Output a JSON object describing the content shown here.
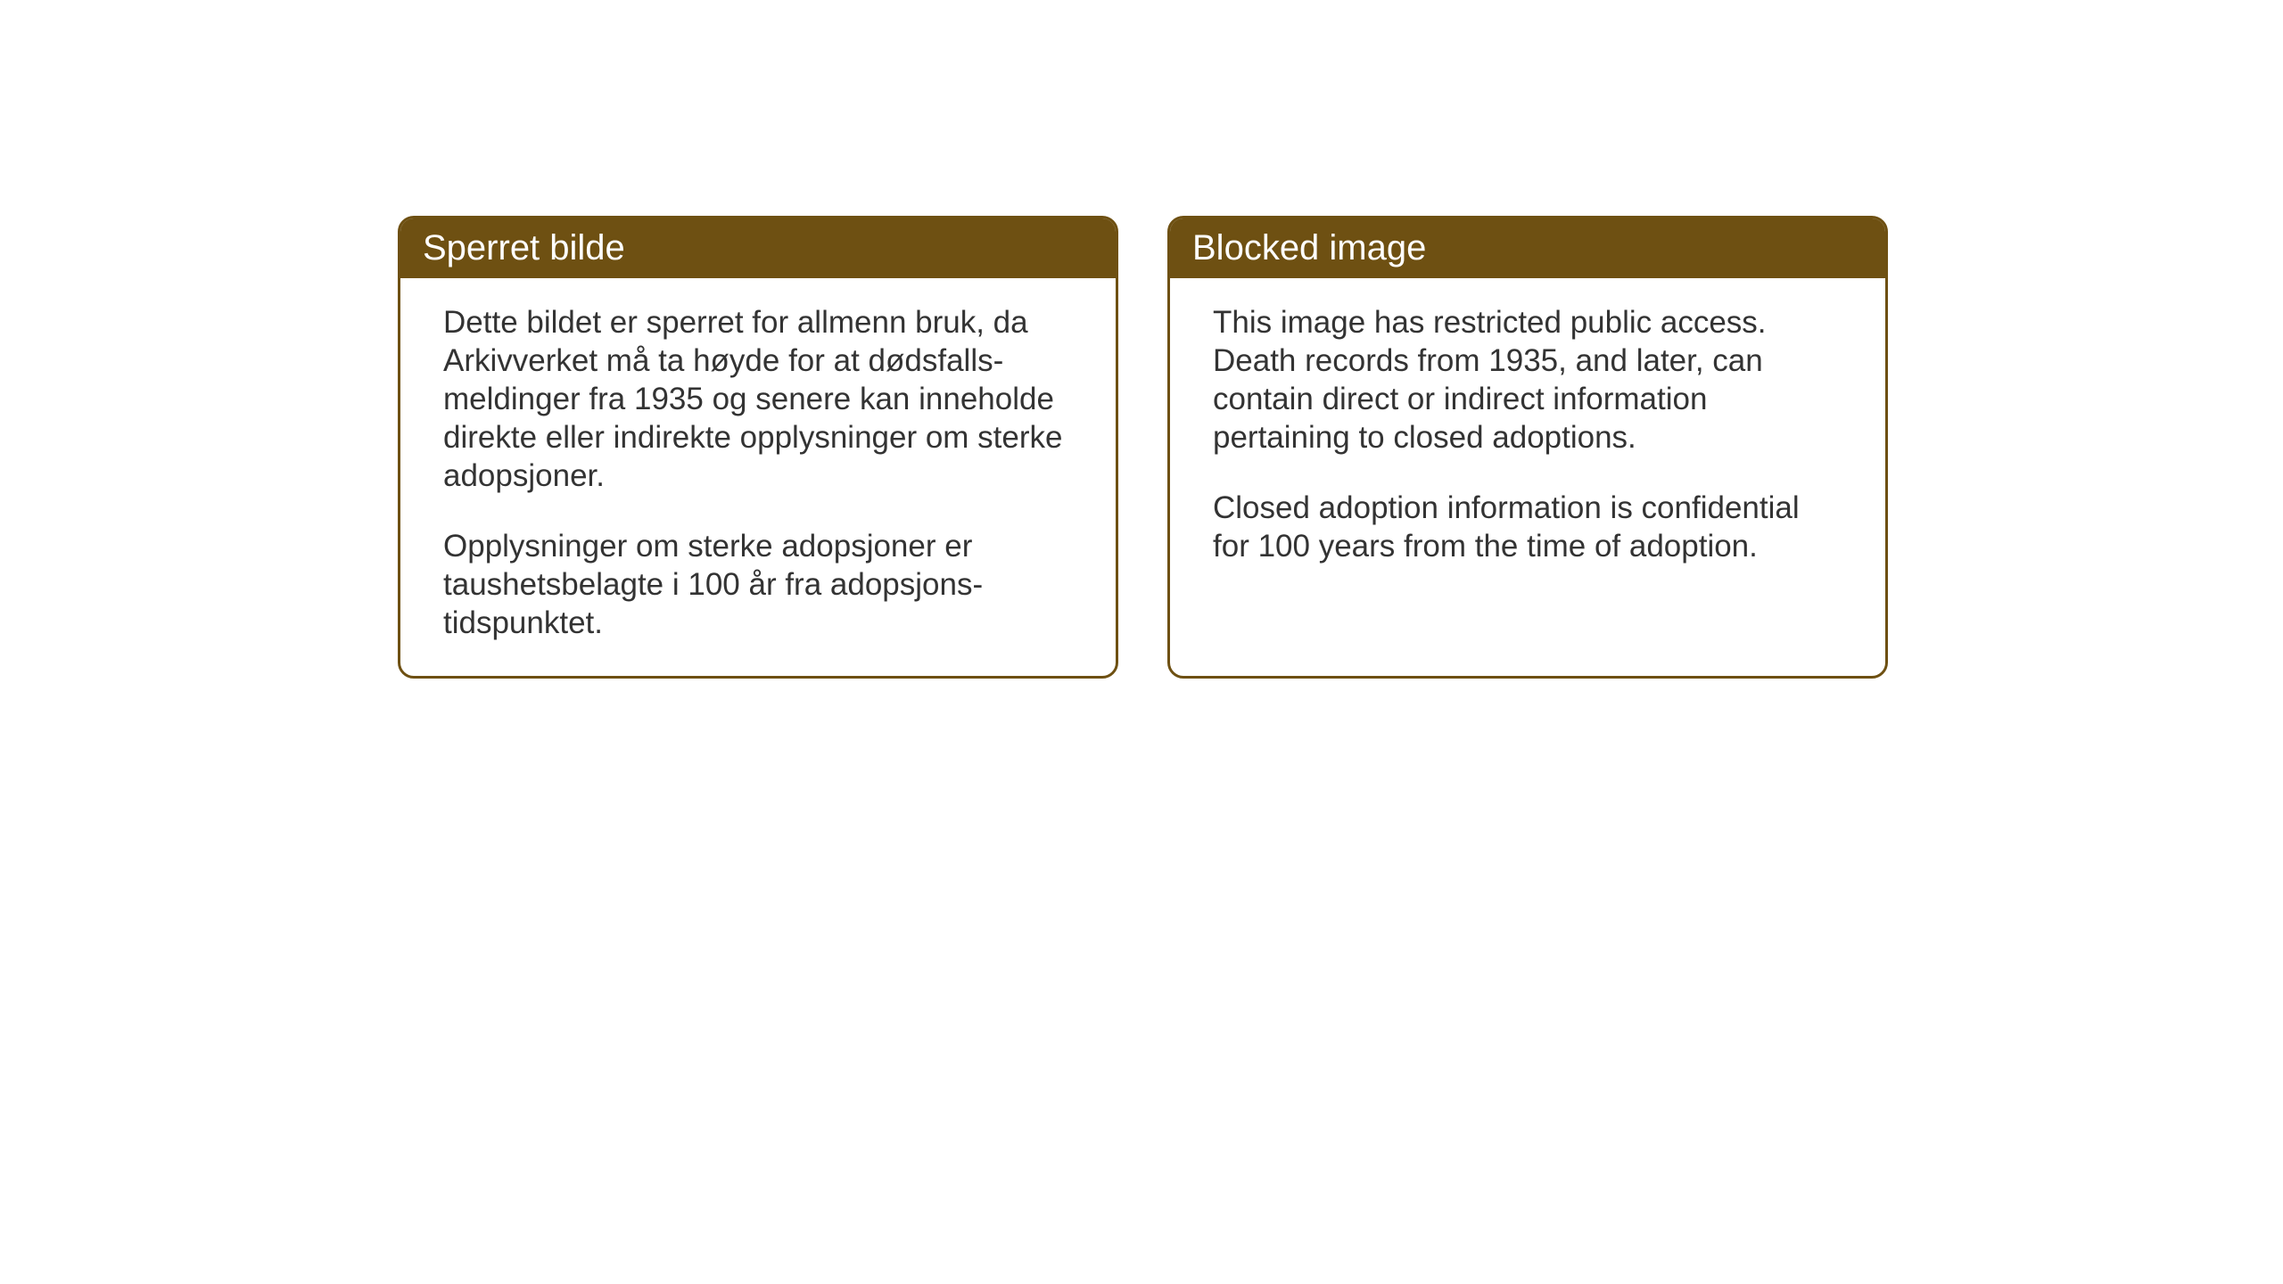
{
  "cards": {
    "norwegian": {
      "title": "Sperret bilde",
      "paragraph1": "Dette bildet er sperret for allmenn bruk, da Arkivverket må ta høyde for at dødsfalls-meldinger fra 1935 og senere kan inneholde direkte eller indirekte opplysninger om sterke adopsjoner.",
      "paragraph2": "Opplysninger om sterke adopsjoner er taushetsbelagte i 100 år fra adopsjons-tidspunktet."
    },
    "english": {
      "title": "Blocked image",
      "paragraph1": "This image has restricted public access. Death records from 1935, and later, can contain direct or indirect information pertaining to closed adoptions.",
      "paragraph2": "Closed adoption information is confidential for 100 years from the time of adoption."
    }
  },
  "styling": {
    "header_bg_color": "#6e5012",
    "border_color": "#6e5012",
    "header_text_color": "#ffffff",
    "body_text_color": "#333333",
    "card_bg_color": "#ffffff",
    "page_bg_color": "#ffffff",
    "header_fontsize": 40,
    "body_fontsize": 35,
    "border_radius": 18,
    "border_width": 3
  }
}
